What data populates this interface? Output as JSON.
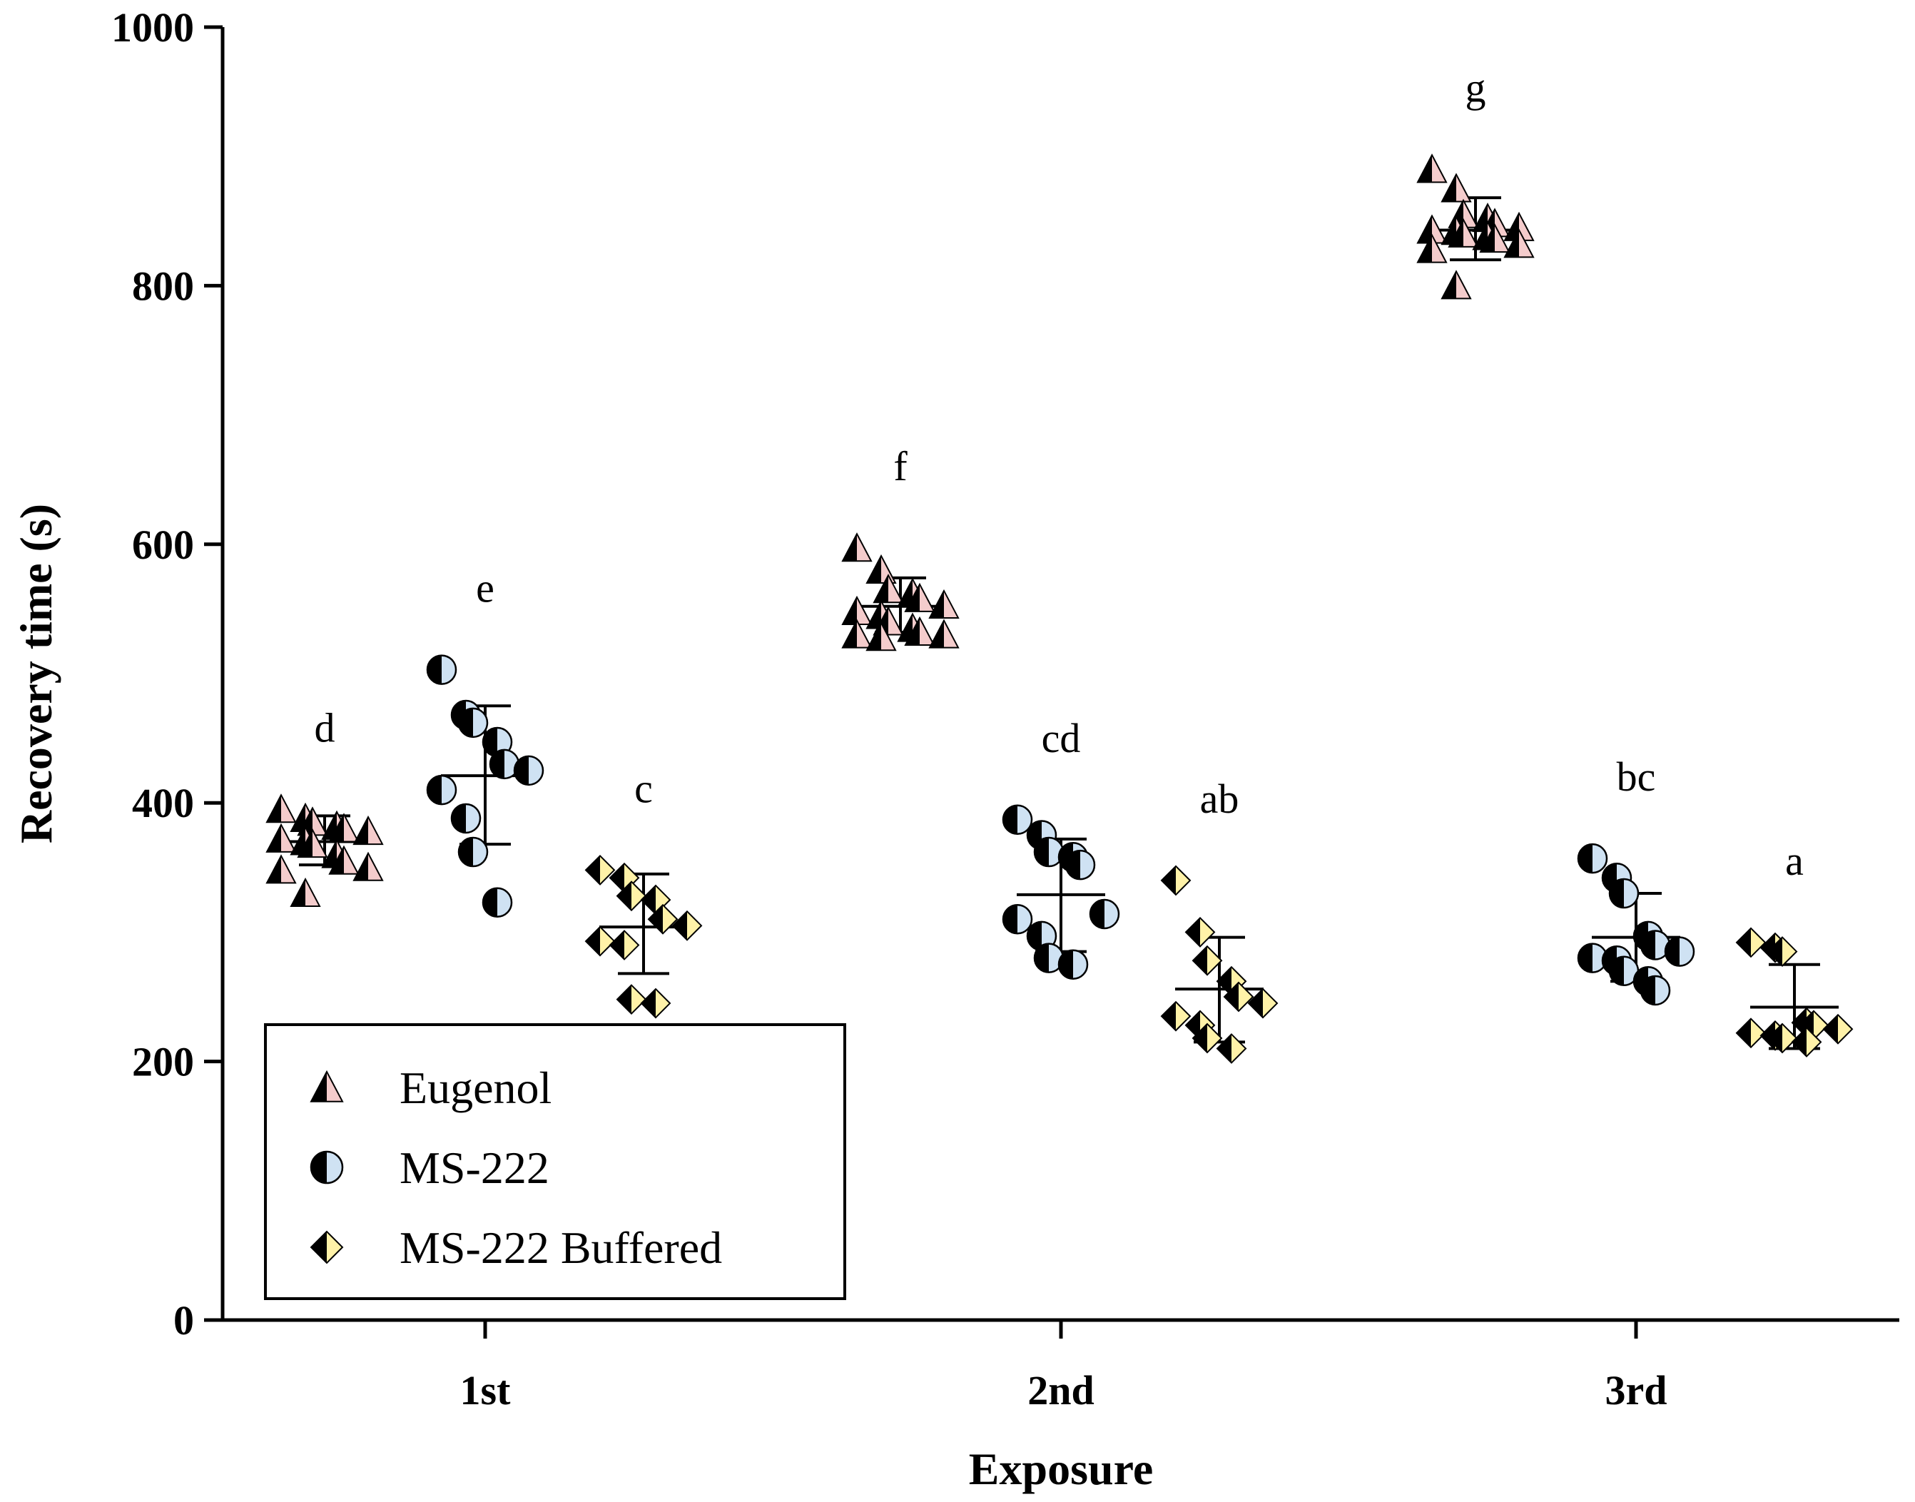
{
  "chart_data": {
    "type": "scatter",
    "title": "",
    "xlabel": "Exposure",
    "ylabel": "Recovery time (s)",
    "ylim": [
      0,
      1000
    ],
    "yticks": [
      0,
      200,
      400,
      600,
      800,
      1000
    ],
    "categories": [
      "1st",
      "2nd",
      "3rd"
    ],
    "legend_position": "bottom-left",
    "series": [
      {
        "name": "Eugenol",
        "marker": "triangle",
        "color_dark": "#000000",
        "color_light": "#f4cccc",
        "groups": [
          {
            "category": "1st",
            "mean": 370,
            "sd_low": 352,
            "sd_high": 390,
            "label": "d",
            "values": [
              395,
              388,
              385,
              382,
              380,
              378,
              372,
              370,
              368,
              360,
              355,
              350,
              348,
              330
            ]
          },
          {
            "category": "2nd",
            "mean": 552,
            "sd_low": 532,
            "sd_high": 574,
            "label": "f",
            "values": [
              597,
              580,
              565,
              562,
              558,
              553,
              548,
              545,
              540,
              535,
              532,
              530,
              530,
              528
            ]
          },
          {
            "category": "3rd",
            "mean": 843,
            "sd_low": 820,
            "sd_high": 868,
            "label": "g",
            "values": [
              890,
              875,
              855,
              852,
              848,
              845,
              843,
              842,
              840,
              838,
              836,
              832,
              828,
              800
            ]
          }
        ]
      },
      {
        "name": "MS-222",
        "marker": "circle",
        "color_dark": "#000000",
        "color_light": "#cfe2f3",
        "groups": [
          {
            "category": "1st",
            "mean": 421,
            "sd_low": 368,
            "sd_high": 475,
            "label": "e",
            "values": [
              503,
              468,
              462,
              447,
              430,
              425,
              410,
              388,
              362,
              323
            ]
          },
          {
            "category": "2nd",
            "mean": 329,
            "sd_low": 285,
            "sd_high": 372,
            "label": "cd",
            "values": [
              387,
              375,
              362,
              358,
              352,
              314,
              310,
              297,
              280,
              275
            ]
          },
          {
            "category": "3rd",
            "mean": 296,
            "sd_low": 262,
            "sd_high": 330,
            "label": "bc",
            "values": [
              357,
              342,
              330,
              297,
              290,
              285,
              280,
              278,
              270,
              262,
              255
            ]
          }
        ]
      },
      {
        "name": "MS-222 Buffered",
        "marker": "diamond",
        "color_dark": "#000000",
        "color_light": "#fff2a8",
        "groups": [
          {
            "category": "1st",
            "mean": 304,
            "sd_low": 268,
            "sd_high": 345,
            "label": "c",
            "values": [
              348,
              342,
              328,
              325,
              310,
              305,
              293,
              290,
              248,
              245
            ]
          },
          {
            "category": "2nd",
            "mean": 256,
            "sd_low": 215,
            "sd_high": 296,
            "label": "ab",
            "values": [
              340,
              300,
              278,
              262,
              250,
              245,
              235,
              228,
              218,
              210
            ]
          },
          {
            "category": "3rd",
            "mean": 242,
            "sd_low": 210,
            "sd_high": 275,
            "label": "a",
            "values": [
              292,
              288,
              285,
              230,
              228,
              225,
              222,
              220,
              218,
              215
            ]
          }
        ]
      }
    ]
  }
}
